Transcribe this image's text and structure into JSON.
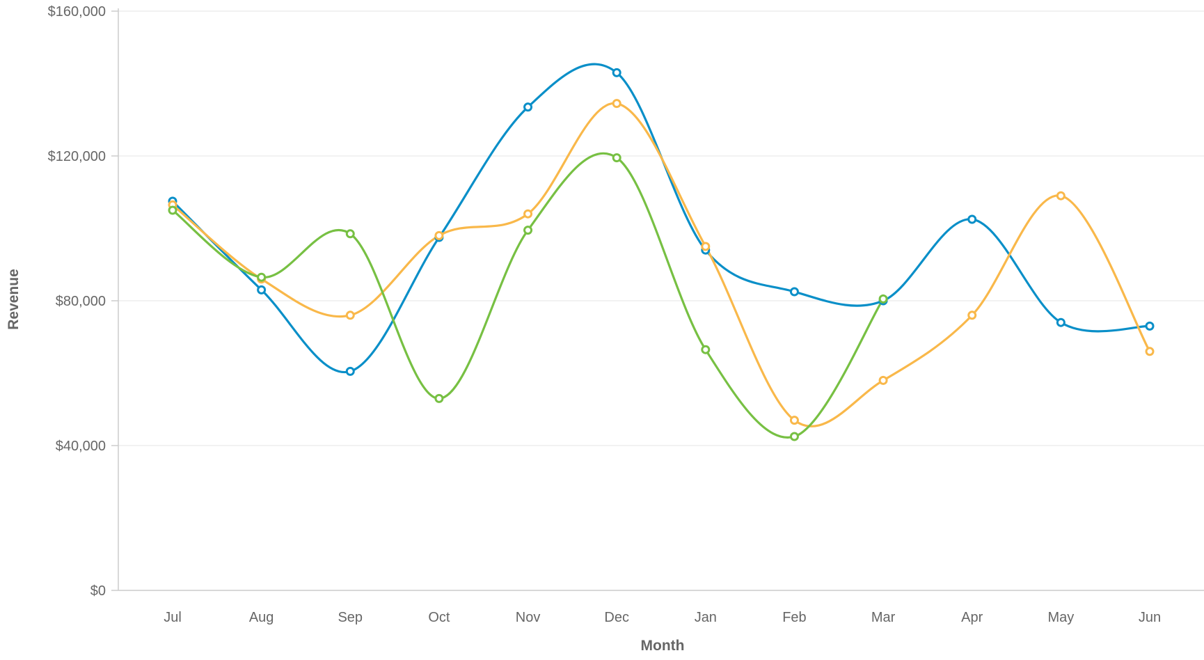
{
  "chart_data": {
    "type": "line",
    "title": "",
    "xlabel": "Month",
    "ylabel": "Revenue",
    "categories": [
      "Jul",
      "Aug",
      "Sep",
      "Oct",
      "Nov",
      "Dec",
      "Jan",
      "Feb",
      "Mar",
      "Apr",
      "May",
      "Jun"
    ],
    "ylim": [
      0,
      160000
    ],
    "y_ticks": [
      {
        "value": 0,
        "label": "$0"
      },
      {
        "value": 40000,
        "label": "$40,000"
      },
      {
        "value": 80000,
        "label": "$80,000"
      },
      {
        "value": 120000,
        "label": "$120,000"
      },
      {
        "value": 160000,
        "label": "$160,000"
      }
    ],
    "grid": true,
    "legend": "none",
    "series": [
      {
        "color": "#0a8fc8",
        "values": [
          107500,
          83000,
          60500,
          97500,
          133500,
          143000,
          94000,
          82500,
          80000,
          102500,
          74000,
          73000
        ]
      },
      {
        "color": "#f9b84a",
        "values": [
          106500,
          86000,
          76000,
          98000,
          104000,
          134500,
          95000,
          47000,
          58000,
          76000,
          109000,
          66000
        ]
      },
      {
        "color": "#77c043",
        "values": [
          105000,
          86500,
          98500,
          53000,
          99500,
          119500,
          66500,
          42500,
          80500,
          null,
          null,
          null
        ]
      }
    ]
  }
}
